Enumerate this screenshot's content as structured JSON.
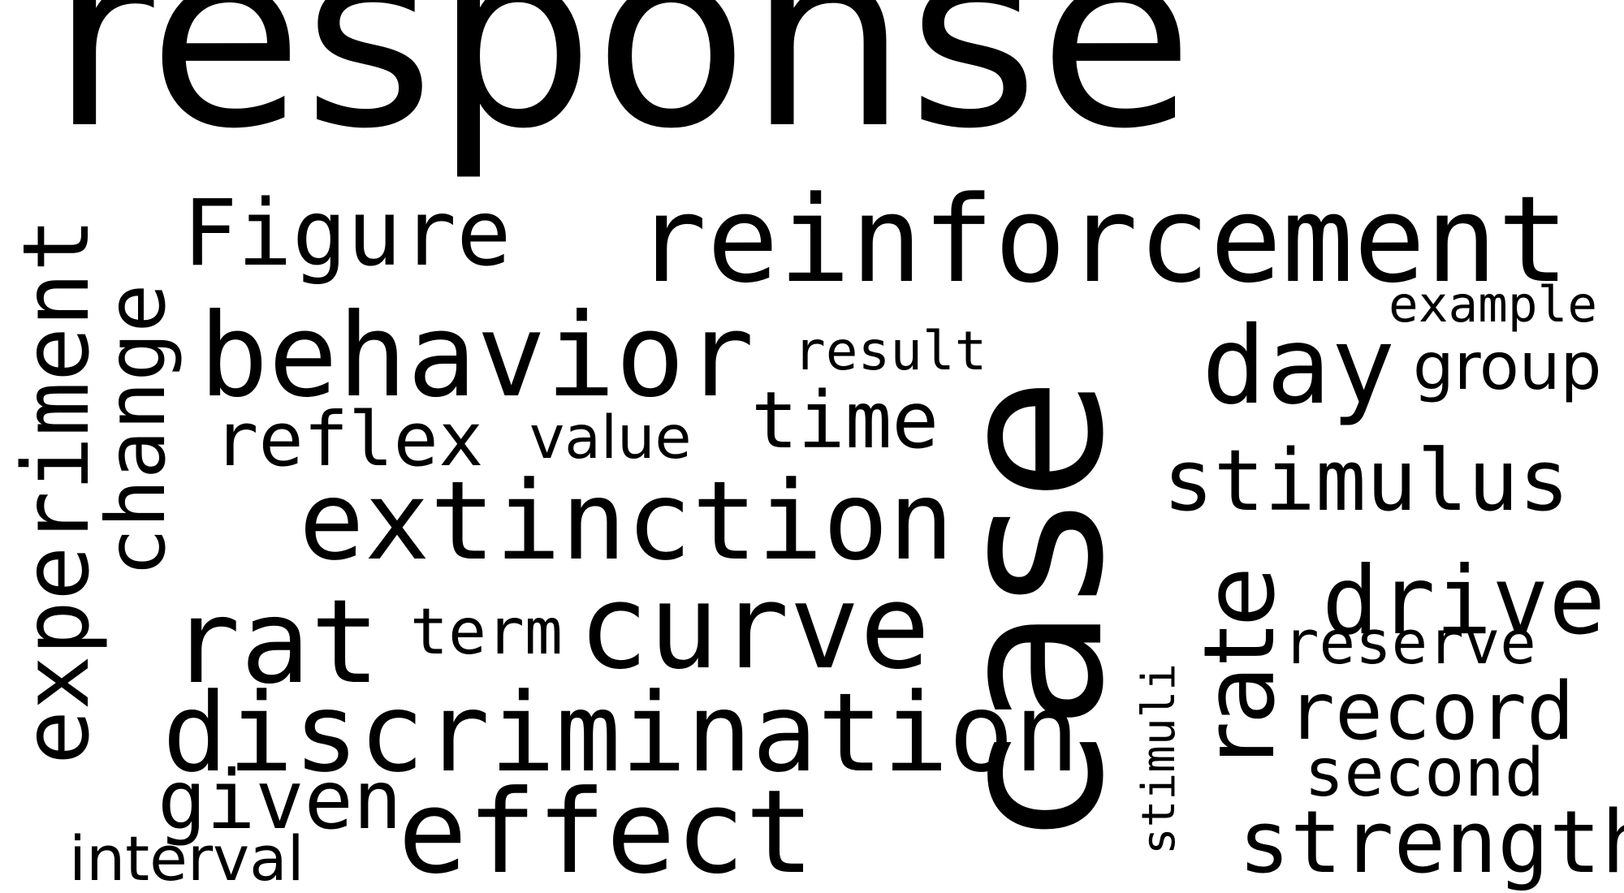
{
  "background": "#ffffff",
  "text_color": "#000000",
  "words": {
    "response": "response",
    "reinforcement": "reinforcement",
    "case": "case",
    "behavior": "behavior",
    "extinction": "extinction",
    "curve": "curve",
    "discrimination": "discrimination",
    "effect": "effect",
    "experiment": "experiment",
    "change": "change",
    "figure": "Figure",
    "day": "day",
    "stimulus": "stimulus",
    "rate": "rate",
    "drive": "drive",
    "rat": "rat",
    "strength": "strength",
    "record": "record",
    "time": "time",
    "reflex": "reflex",
    "group": "group",
    "given": "given",
    "second": "second",
    "reserve": "reserve",
    "example": "example",
    "result": "result",
    "value": "value",
    "term": "term",
    "interval": "interval",
    "stimuli": "stimuli"
  }
}
